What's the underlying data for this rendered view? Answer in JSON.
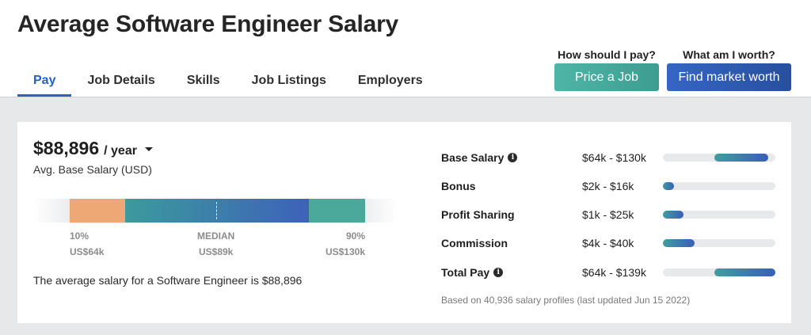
{
  "page_title": "Average Software Engineer Salary",
  "tabs": [
    {
      "label": "Pay",
      "active": true
    },
    {
      "label": "Job Details",
      "active": false
    },
    {
      "label": "Skills",
      "active": false
    },
    {
      "label": "Job Listings",
      "active": false
    },
    {
      "label": "Employers",
      "active": false
    }
  ],
  "cta": {
    "pay_question": "How should I pay?",
    "pay_button": "Price a Job",
    "worth_question": "What am I worth?",
    "worth_button": "Find market worth"
  },
  "salary": {
    "amount": "$88,896",
    "period": "/ year",
    "subtitle": "Avg. Base Salary (USD)",
    "summary": "The average salary for a Software Engineer is $88,896"
  },
  "distribution": {
    "p10_label": "10%",
    "p10_value": "US$64k",
    "median_label": "MEDIAN",
    "median_value": "US$89k",
    "p90_label": "90%",
    "p90_value": "US$130k"
  },
  "compensation": [
    {
      "label": "Base Salary",
      "info": true,
      "range": "$64k - $130k",
      "bar_start": 0.46,
      "bar_end": 0.94
    },
    {
      "label": "Bonus",
      "info": false,
      "range": "$2k - $16k",
      "bar_start": 0.0,
      "bar_end": 0.1
    },
    {
      "label": "Profit Sharing",
      "info": false,
      "range": "$1k - $25k",
      "bar_start": 0.0,
      "bar_end": 0.18
    },
    {
      "label": "Commission",
      "info": false,
      "range": "$4k - $40k",
      "bar_start": 0.0,
      "bar_end": 0.28
    },
    {
      "label": "Total Pay",
      "info": true,
      "range": "$64k - $139k",
      "bar_start": 0.46,
      "bar_end": 1.0
    }
  ],
  "footnote": "Based on 40,936 salary profiles (last updated Jun 15 2022)",
  "colors": {
    "accent_blue": "#2f62c0",
    "teal_button": "#45a99a",
    "blue_button": "#2e5bb3",
    "percentile_low": "#eda876",
    "percentile_high": "#4aa99b"
  }
}
